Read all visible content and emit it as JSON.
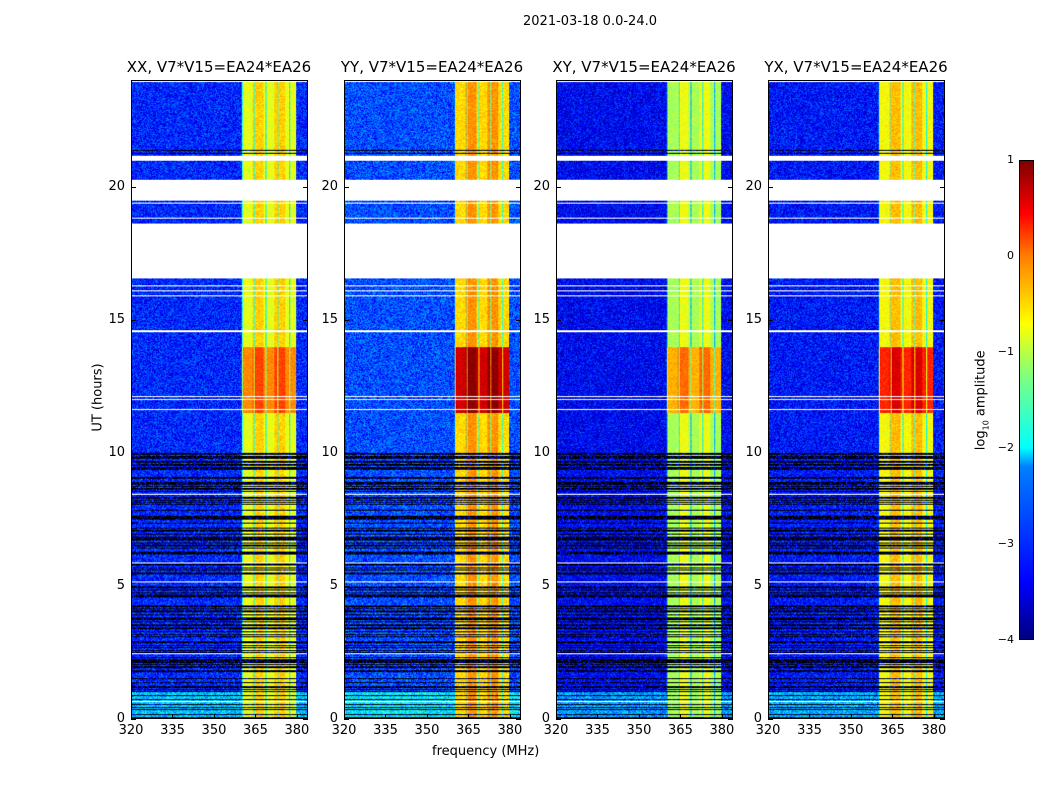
{
  "chart_data": {
    "type": "heatmap",
    "title": "2021-03-18 0.0-24.0",
    "xlabel": "frequency (MHz)",
    "ylabel": "UT (hours)",
    "xlim": [
      320,
      384
    ],
    "ylim": [
      0,
      24
    ],
    "xticks": [
      "320",
      "335",
      "350",
      "365",
      "380"
    ],
    "yticks": [
      "0",
      "5",
      "10",
      "15",
      "20"
    ],
    "colorbar": {
      "label": "log10 amplitude",
      "range": [
        -4,
        1
      ],
      "ticks": [
        "1",
        "0",
        "−1",
        "−2",
        "−3",
        "−4"
      ]
    },
    "flagged_gaps_ut": [
      [
        16.6,
        18.6
      ],
      [
        19.5,
        20.3
      ],
      [
        21.0,
        21.2
      ]
    ],
    "strong_band_mhz": [
      360,
      380
    ],
    "panels": [
      {
        "title": "XX, V7*V15=EA24*EA26",
        "background_log_amp": -3.2,
        "band_log_amp": -1.0,
        "band_peak_log_amp": -0.3
      },
      {
        "title": "YY, V7*V15=EA24*EA26",
        "background_log_amp": -3.0,
        "band_log_amp": -0.7,
        "band_peak_log_amp": 0.6
      },
      {
        "title": "XY, V7*V15=EA24*EA26",
        "background_log_amp": -3.4,
        "band_log_amp": -1.3,
        "band_peak_log_amp": -0.5
      },
      {
        "title": "YX, V7*V15=EA24*EA26",
        "background_log_amp": -3.3,
        "band_log_amp": -0.9,
        "band_peak_log_amp": 0.2
      }
    ]
  }
}
